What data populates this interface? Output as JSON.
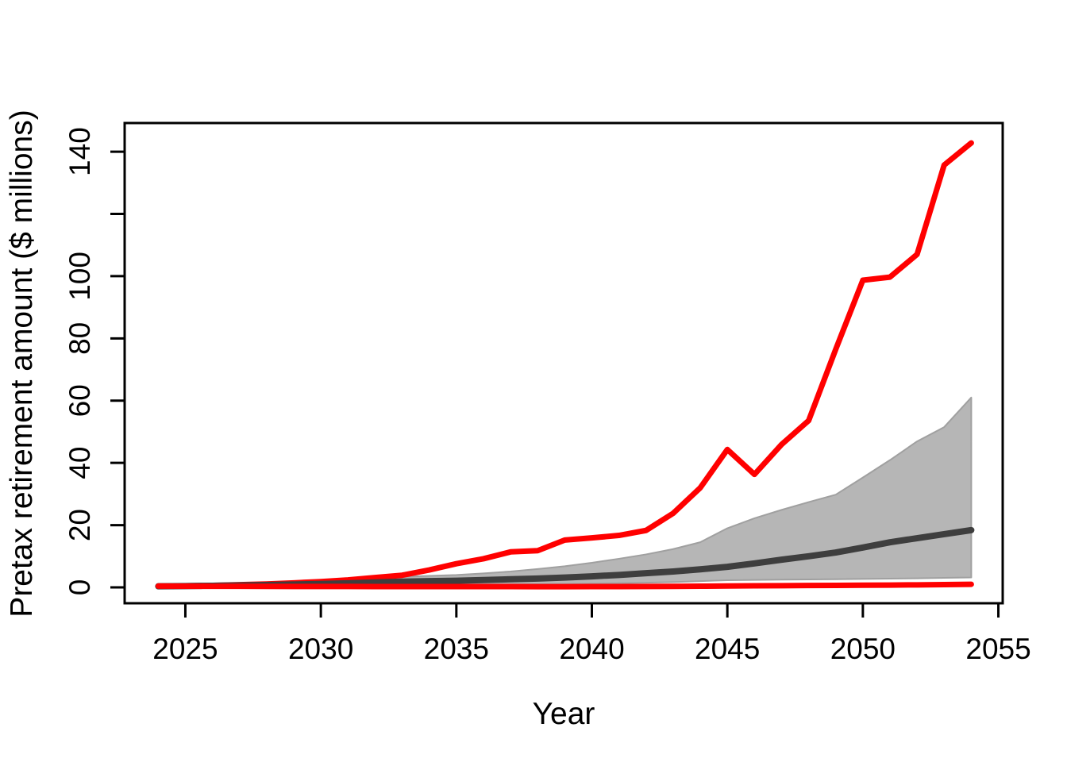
{
  "figure": {
    "background": "#ffffff",
    "title": ""
  },
  "chart_data": {
    "type": "line",
    "title": "",
    "xlabel": "Year",
    "ylabel": "Pretax retirement amount ($ millions)",
    "grid": false,
    "legend": "none",
    "xlim": [
      2022.76,
      2055.16
    ],
    "ylim": [
      -5.1,
      149.2
    ],
    "x_ticks": [
      2025,
      2030,
      2035,
      2040,
      2045,
      2050,
      2055
    ],
    "x_tick_labels": [
      "2025",
      "2030",
      "2035",
      "2040",
      "2045",
      "2050",
      "2055"
    ],
    "y_ticks": [
      0,
      20,
      40,
      60,
      80,
      100,
      120,
      140
    ],
    "y_tick_labels": [
      "0",
      "20",
      "40",
      "60",
      "80",
      "100",
      "",
      "140"
    ],
    "x": [
      2024,
      2025,
      2026,
      2027,
      2028,
      2029,
      2030,
      2031,
      2032,
      2033,
      2034,
      2035,
      2036,
      2037,
      2038,
      2039,
      2040,
      2041,
      2042,
      2043,
      2044,
      2045,
      2046,
      2047,
      2048,
      2049,
      2050,
      2051,
      2052,
      2053,
      2054
    ],
    "band": {
      "name": "simulation-envelope-band",
      "fill": "#b6b6b6",
      "edge": "#a0a0a0",
      "upper": [
        0.45,
        0.58,
        0.74,
        0.93,
        1.18,
        1.45,
        1.75,
        2.35,
        2.9,
        3.4,
        3.7,
        4.0,
        4.5,
        5.1,
        5.9,
        6.8,
        7.9,
        9.2,
        10.6,
        12.3,
        14.5,
        19.0,
        22.2,
        24.9,
        27.4,
        29.8,
        35.3,
        40.9,
        46.9,
        51.5,
        61.0
      ],
      "lower": [
        0.3,
        0.32,
        0.35,
        0.38,
        0.42,
        0.46,
        0.5,
        0.55,
        0.6,
        0.66,
        0.72,
        0.8,
        0.87,
        0.95,
        1.03,
        1.1,
        1.2,
        1.35,
        1.5,
        1.7,
        2.0,
        2.3,
        2.4,
        2.5,
        2.55,
        2.6,
        2.7,
        2.8,
        2.9,
        3.05,
        3.2
      ]
    },
    "series": [
      {
        "name": "maximum-scenario-line",
        "color": "#ff0000",
        "width": 7,
        "values": [
          0.4,
          0.5,
          0.65,
          0.85,
          1.1,
          1.45,
          1.85,
          2.4,
          3.15,
          3.9,
          5.6,
          7.6,
          9.2,
          11.4,
          11.8,
          15.2,
          15.9,
          16.7,
          18.3,
          23.8,
          32.0,
          44.3,
          36.3,
          45.9,
          53.6,
          76.5,
          98.7,
          99.7,
          107.0,
          135.7,
          142.8
        ]
      },
      {
        "name": "median-scenario-line",
        "color": "#3e3e3e",
        "width": 8,
        "values": [
          0.35,
          0.42,
          0.5,
          0.62,
          0.78,
          0.92,
          1.1,
          1.32,
          1.58,
          1.85,
          2.0,
          2.15,
          2.35,
          2.6,
          2.85,
          3.15,
          3.55,
          4.0,
          4.55,
          5.1,
          5.8,
          6.6,
          7.7,
          8.9,
          10.0,
          11.2,
          12.8,
          14.5,
          15.8,
          17.1,
          18.4
        ]
      },
      {
        "name": "minimum-scenario-line",
        "color": "#ff0000",
        "width": 7,
        "values": [
          0.4,
          0.38,
          0.36,
          0.34,
          0.32,
          0.3,
          0.29,
          0.28,
          0.27,
          0.26,
          0.25,
          0.25,
          0.24,
          0.24,
          0.23,
          0.23,
          0.25,
          0.27,
          0.3,
          0.33,
          0.38,
          0.45,
          0.5,
          0.55,
          0.6,
          0.65,
          0.7,
          0.75,
          0.8,
          0.9,
          1.0
        ]
      }
    ],
    "axis_color": "#000000"
  }
}
